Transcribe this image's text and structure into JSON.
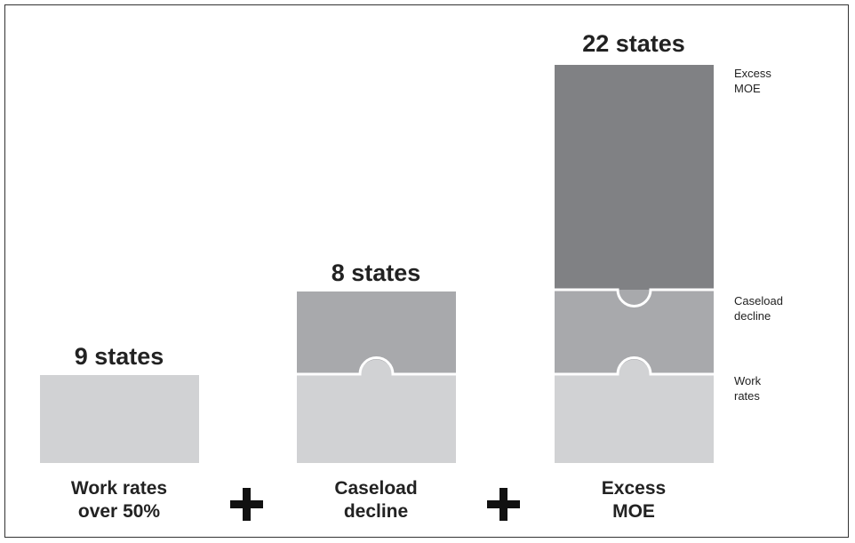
{
  "colors": {
    "work_rates": "#d1d2d4",
    "caseload": "#a8a9ac",
    "excess_moe": "#808184",
    "text": "#222222",
    "plus": "#111111"
  },
  "columns": [
    {
      "count_label": "9 states",
      "caption_line1": "Work rates",
      "caption_line2": "over 50%"
    },
    {
      "count_label": "8 states",
      "caption_line1": "Caseload",
      "caption_line2": "decline"
    },
    {
      "count_label": "22 states",
      "caption_line1": "Excess",
      "caption_line2": "MOE"
    }
  ],
  "operators": [
    "+",
    "+"
  ],
  "legend": [
    {
      "line1": "Excess",
      "line2": "MOE"
    },
    {
      "line1": "Caseload",
      "line2": "decline"
    },
    {
      "line1": "Work",
      "line2": "rates"
    }
  ],
  "icons": [
    "plus-icon"
  ]
}
